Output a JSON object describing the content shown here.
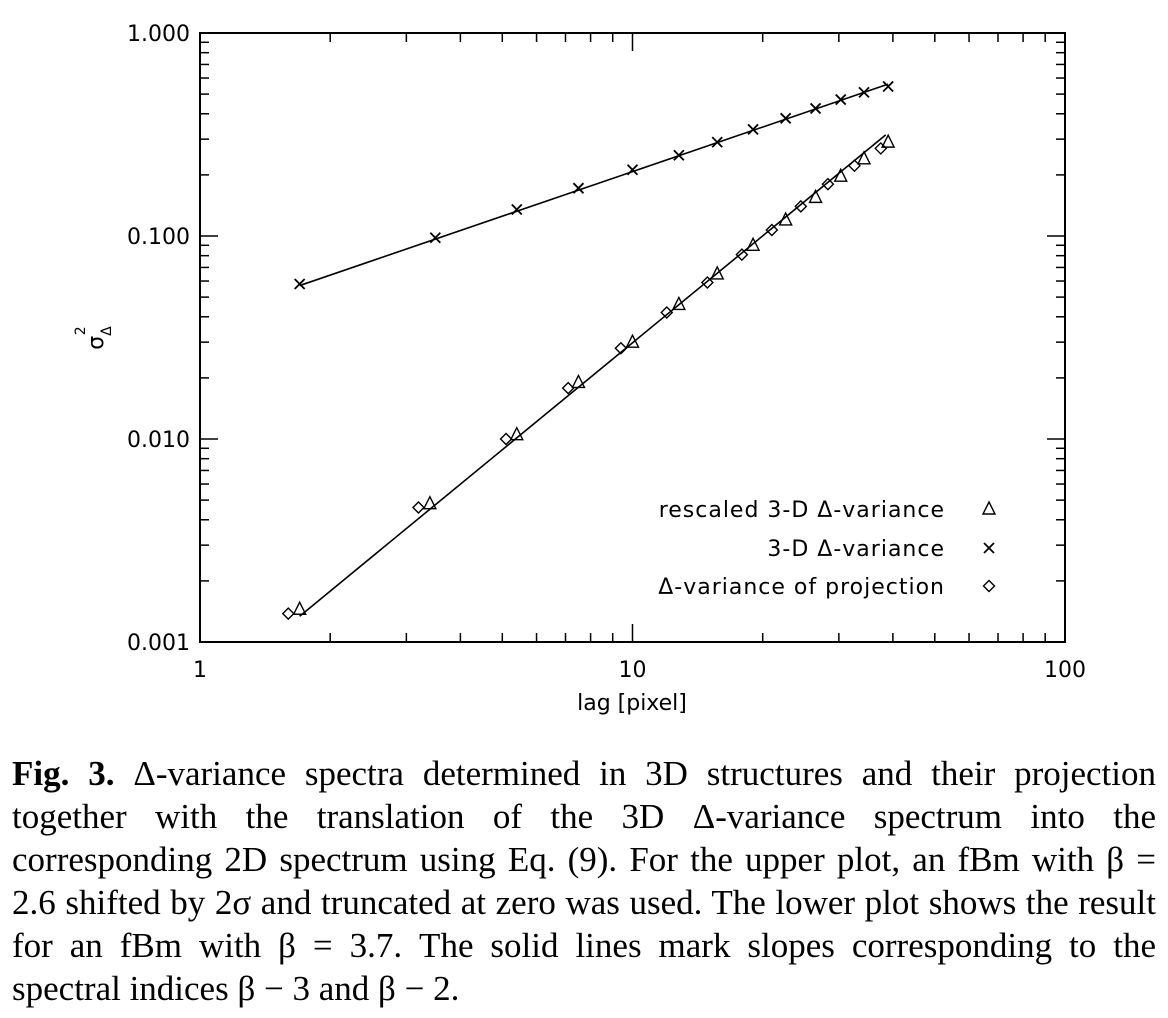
{
  "chart_data": {
    "type": "scatter",
    "xlabel": "lag [pixel]",
    "ylabel": "σ_Δ^2",
    "xscale": "log",
    "yscale": "log",
    "xlim": [
      1,
      100
    ],
    "ylim": [
      0.001,
      1.0
    ],
    "x_ticks": [
      1,
      10,
      100
    ],
    "x_tick_labels": [
      "1",
      "10",
      "100"
    ],
    "y_ticks": [
      0.001,
      0.01,
      0.1,
      1.0
    ],
    "y_tick_labels": [
      "0.001",
      "0.010",
      "0.100",
      "1.000"
    ],
    "legend_position": "bottom-right",
    "series": [
      {
        "name": "rescaled 3-D Δ-variance",
        "marker": "triangle",
        "symbol": "Δ",
        "x": [
          1.7,
          3.4,
          5.4,
          7.5,
          10.0,
          12.8,
          15.7,
          19.0,
          22.6,
          26.5,
          30.3,
          34.3,
          39.0
        ],
        "y": [
          0.00145,
          0.0048,
          0.0105,
          0.019,
          0.03,
          0.046,
          0.065,
          0.09,
          0.12,
          0.155,
          0.197,
          0.24,
          0.29
        ]
      },
      {
        "name": "3-D Δ-variance",
        "marker": "x",
        "symbol": "x",
        "x": [
          1.7,
          3.5,
          5.4,
          7.5,
          10.0,
          12.8,
          15.7,
          19.0,
          22.6,
          26.5,
          30.3,
          34.3,
          39.0
        ],
        "y": [
          0.058,
          0.098,
          0.135,
          0.172,
          0.212,
          0.25,
          0.29,
          0.335,
          0.38,
          0.425,
          0.47,
          0.51,
          0.545
        ]
      },
      {
        "name": "Δ-variance of projection",
        "marker": "diamond",
        "symbol": "◇",
        "x": [
          1.6,
          3.2,
          5.1,
          7.1,
          9.4,
          12.0,
          14.9,
          17.9,
          21.0,
          24.5,
          28.3,
          32.6,
          37.5
        ],
        "y": [
          0.00138,
          0.0046,
          0.01,
          0.0178,
          0.028,
          0.042,
          0.059,
          0.081,
          0.107,
          0.14,
          0.18,
          0.222,
          0.27
        ]
      }
    ],
    "lines": [
      {
        "x": [
          1.7,
          39.0
        ],
        "y": [
          0.057,
          0.56
        ]
      },
      {
        "x": [
          1.7,
          38.5
        ],
        "y": [
          0.00134,
          0.315
        ]
      }
    ]
  },
  "caption": {
    "label": "Fig. 3.",
    "text": "Δ-variance spectra determined in 3D structures and their projection together with the translation of the 3D Δ-variance spectrum into the corresponding 2D spectrum using Eq. (9). For the upper plot, an fBm with β = 2.6 shifted by 2σ and truncated at zero was used. The lower plot shows the result for an fBm with β = 3.7. The solid lines mark slopes corresponding to the spectral indices β − 3 and β − 2."
  }
}
